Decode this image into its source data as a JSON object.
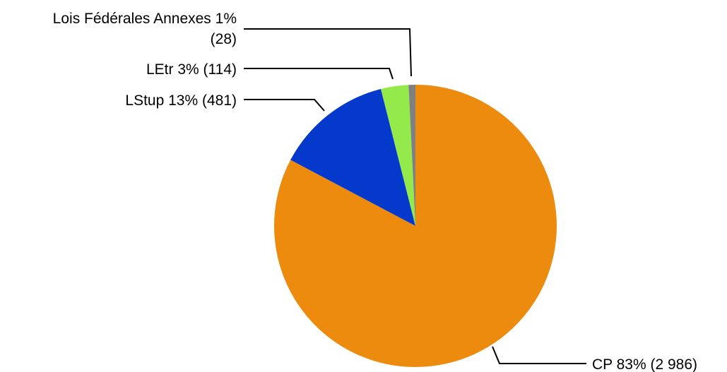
{
  "chart_data": {
    "type": "pie",
    "title": "",
    "start_angle_deg": 0,
    "direction": "clockwise",
    "slices": [
      {
        "key": "cp",
        "name": "CP",
        "value": 2986,
        "percent": 83,
        "label": "CP 83% (2 986)",
        "color": "#ED8B0E"
      },
      {
        "key": "lstup",
        "name": "LStup",
        "value": 481,
        "percent": 13,
        "label": "LStup 13% (481)",
        "color": "#0539CC"
      },
      {
        "key": "letr",
        "name": "LEtr",
        "value": 114,
        "percent": 3,
        "label": "LEtr 3% (114)",
        "color": "#95EA4B"
      },
      {
        "key": "lois-federales-annexes",
        "name": "Lois Fédérales Annexes",
        "value": 28,
        "percent": 1,
        "label_lines": [
          "Lois Fédérales Annexes 1%",
          "(28)"
        ],
        "color": "#808080"
      }
    ]
  }
}
